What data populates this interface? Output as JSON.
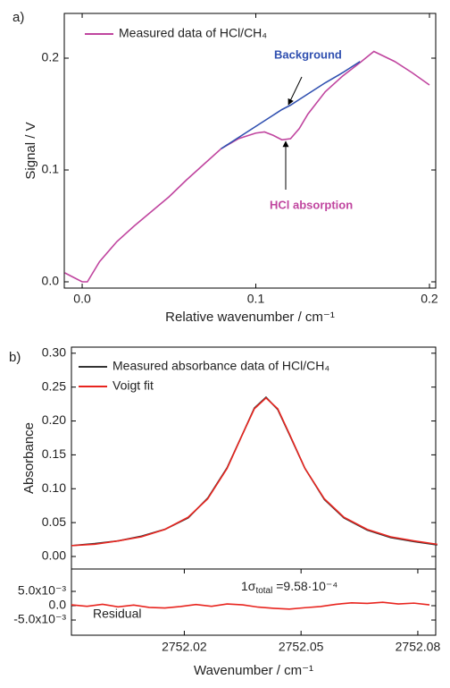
{
  "chart_data": [
    {
      "type": "line",
      "title": "a)",
      "ylabel": "Signal / V",
      "xlabel": "Relative wavenumber / cm⁻¹",
      "xlim": [
        -0.0103,
        0.2036
      ],
      "ylim": [
        -0.0056,
        0.24
      ],
      "xticks": [
        {
          "value": 0,
          "label": "0.0"
        },
        0.1,
        0.2
      ],
      "yticks": [
        {
          "value": 0,
          "label": "0.0"
        },
        0.1,
        0.2
      ],
      "x": [
        -0.01,
        -0.005,
        0,
        0.003,
        0.01,
        0.02,
        0.03,
        0.04,
        0.05,
        0.06,
        0.07,
        0.08,
        0.09,
        0.1,
        0.105,
        0.11,
        0.115,
        0.12,
        0.125,
        0.13,
        0.14,
        0.15,
        0.16,
        0.168,
        0.18,
        0.19,
        0.2
      ],
      "series": [
        {
          "name": "Measured data of HCl/CH₄",
          "color": "#c0459f",
          "values": [
            0.008,
            0.004,
            0.0,
            0.0,
            0.018,
            0.036,
            0.05,
            0.063,
            0.076,
            0.091,
            0.105,
            0.119,
            0.128,
            0.133,
            0.134,
            0.131,
            0.127,
            0.128,
            0.137,
            0.15,
            0.17,
            0.184,
            0.196,
            0.206,
            0.197,
            0.187,
            0.176
          ]
        },
        {
          "color": "#3050b0",
          "values": [
            null,
            null,
            null,
            null,
            null,
            null,
            null,
            null,
            null,
            null,
            null,
            0.119,
            0.129,
            0.139,
            0.144,
            0.149,
            0.154,
            0.158,
            0.163,
            0.168,
            0.178,
            0.187,
            0.197,
            null,
            null,
            null,
            null
          ]
        }
      ],
      "annotations": [
        "Background",
        "HCl absorption"
      ]
    },
    {
      "type": "line",
      "title": "b)",
      "ylabel": "Absorbance",
      "xlim": [
        2751.991,
        2752.0846
      ],
      "ylim": [
        -0.0185,
        0.309
      ],
      "yticks": [
        {
          "value": 0,
          "label": "0.00"
        },
        {
          "value": 0.05,
          "label": "0.05"
        },
        {
          "value": 0.1,
          "label": "0.10"
        },
        {
          "value": 0.15,
          "label": "0.15"
        },
        {
          "value": 0.2,
          "label": "0.20"
        },
        {
          "value": 0.25,
          "label": "0.25"
        },
        {
          "value": 0.3,
          "label": "0.30"
        }
      ],
      "x": [
        2751.991,
        2751.997,
        2752.003,
        2752.009,
        2752.015,
        2752.021,
        2752.026,
        2752.031,
        2752.035,
        2752.038,
        2752.041,
        2752.044,
        2752.047,
        2752.051,
        2752.056,
        2752.061,
        2752.067,
        2752.073,
        2752.079,
        2752.085
      ],
      "series": [
        {
          "name": "Measured absorbance data of HCl/CH₄",
          "color": "#333333",
          "values": [
            0.016,
            0.019,
            0.023,
            0.03,
            0.04,
            0.057,
            0.086,
            0.131,
            0.181,
            0.219,
            0.235,
            0.217,
            0.18,
            0.13,
            0.084,
            0.057,
            0.039,
            0.028,
            0.022,
            0.017
          ]
        },
        {
          "name": "Voigt fit",
          "color": "#e8251f",
          "values": [
            0.016,
            0.018,
            0.023,
            0.029,
            0.04,
            0.058,
            0.085,
            0.13,
            0.181,
            0.218,
            0.234,
            0.218,
            0.181,
            0.13,
            0.085,
            0.058,
            0.04,
            0.029,
            0.023,
            0.018
          ]
        }
      ]
    },
    {
      "type": "line",
      "xlabel": "Wavenumber / cm⁻¹",
      "xlim": [
        2751.991,
        2752.0846
      ],
      "ylim": [
        -0.0103,
        0.0128
      ],
      "xticks": [
        2752.02,
        2752.05,
        2752.08
      ],
      "yticks": [
        {
          "value": 0.005,
          "label": "5.0x10⁻³"
        },
        {
          "value": 0,
          "label": "0.0"
        },
        {
          "value": -0.005,
          "label": "-5.0x10⁻³"
        }
      ],
      "x": [
        2751.991,
        2751.995,
        2751.999,
        2752.003,
        2752.007,
        2752.011,
        2752.015,
        2752.019,
        2752.023,
        2752.027,
        2752.031,
        2752.035,
        2752.039,
        2752.043,
        2752.047,
        2752.051,
        2752.055,
        2752.059,
        2752.063,
        2752.067,
        2752.071,
        2752.075,
        2752.079,
        2752.083
      ],
      "series": [
        {
          "color": "#e8251f",
          "values": [
            0.0003,
            -0.0002,
            0.0005,
            -0.0004,
            0.0002,
            -0.0006,
            -0.0008,
            -0.0003,
            0.0004,
            -0.0002,
            0.0006,
            0.0003,
            -0.0005,
            -0.0009,
            -0.0012,
            -0.0007,
            -0.0003,
            0.0005,
            0.001,
            0.0008,
            0.0012,
            0.0006,
            0.0009,
            0.0003
          ]
        }
      ],
      "annotations": [
        "Residual",
        [
          "1σ",
          "total",
          " =9.58·10⁻⁴"
        ]
      ]
    }
  ]
}
